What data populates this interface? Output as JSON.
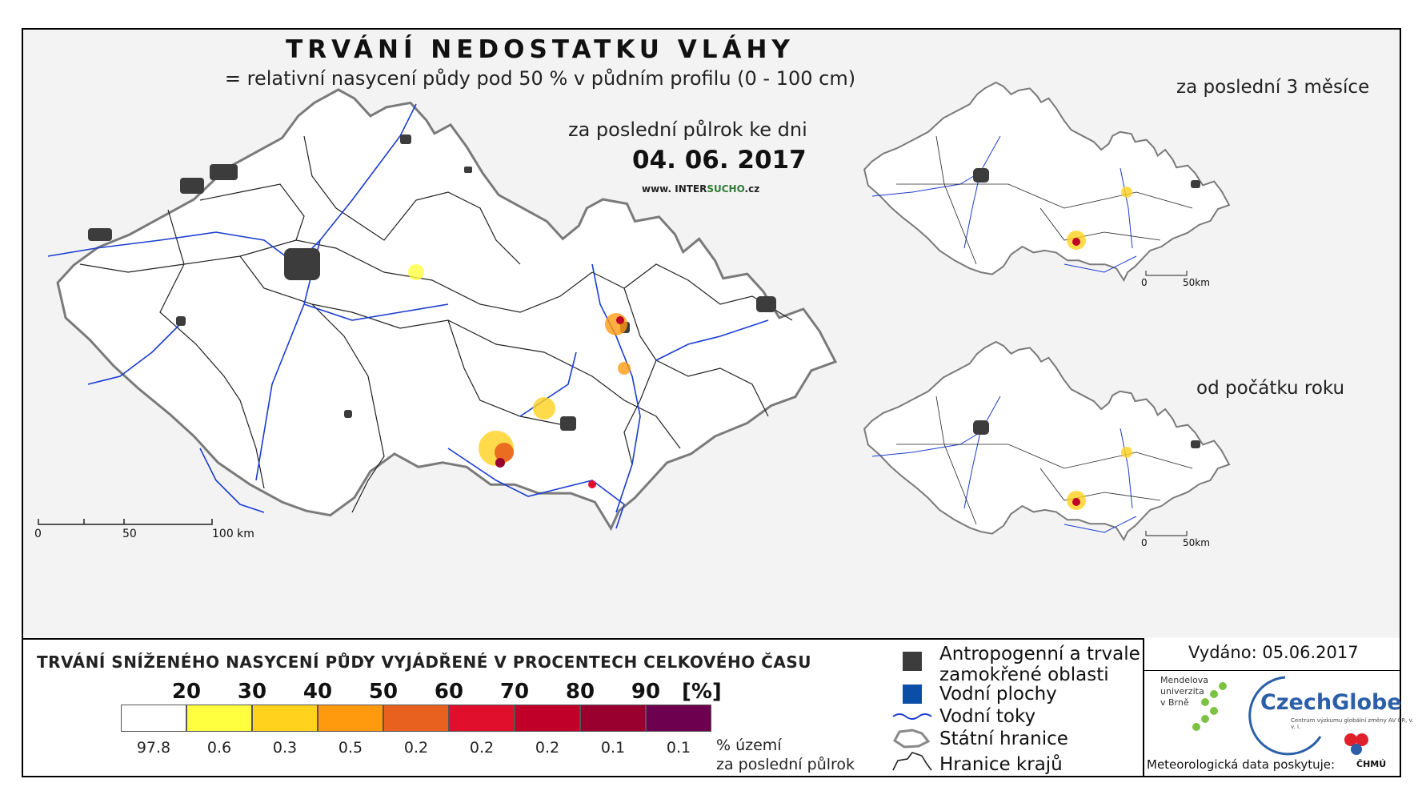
{
  "title": "TRVÁNÍ NEDOSTATKU VLÁHY",
  "subtitle": "= relativní nasycení půdy pod 50 % v půdním profilu (0 - 100 cm)",
  "period_label": "za poslední půlrok ke dni",
  "date": "04. 06. 2017",
  "url": {
    "prefix": "www. INTER",
    "brand": "SUCHO",
    "suffix": ".cz"
  },
  "inset_3m_label": "za poslední 3 měsíce",
  "inset_ytd_label": "od počátku roku",
  "scalebar_main": {
    "zero": "0",
    "mid": "50",
    "end": "100 km"
  },
  "scalebar_inset": {
    "zero": "0",
    "end": "50km"
  },
  "legend": {
    "title": "TRVÁNÍ SNÍŽENÉHO NASYCENÍ PŮDY VYJÁDŘENÉ V PROCENTECH CELKOVÉHO ČASU",
    "thresholds": [
      "20",
      "30",
      "40",
      "50",
      "60",
      "70",
      "80",
      "90"
    ],
    "unit": "[%]",
    "classes": [
      {
        "color": "#ffffff",
        "share": "97.8"
      },
      {
        "color": "#ffff40",
        "share": "0.6"
      },
      {
        "color": "#ffd21e",
        "share": "0.3"
      },
      {
        "color": "#ff9a0f",
        "share": "0.5"
      },
      {
        "color": "#e8611e",
        "share": "0.2"
      },
      {
        "color": "#e0102d",
        "share": "0.2"
      },
      {
        "color": "#c00028",
        "share": "0.2"
      },
      {
        "color": "#990030",
        "share": "0.1"
      },
      {
        "color": "#6e0050",
        "share": "0.1"
      }
    ],
    "share_label_1": "% území",
    "share_label_2": "za poslední půlrok"
  },
  "key": {
    "urban": "Antropogenní a trvale zamokřené oblasti",
    "urban_1": "Antropogenní a trvale",
    "urban_2": "zamokřené oblasti",
    "water": "Vodní plochy",
    "rivers": "Vodní toky",
    "state": "Státní hranice",
    "regions": "Hranice krajů",
    "colors": {
      "urban": "#3c3c3c",
      "water": "#0a4ea8",
      "rivers": "#1a3cd0",
      "border": "#666666"
    }
  },
  "issued": "Vydáno: 05.06.2017",
  "logos": {
    "mendel": [
      "Mendelova",
      "univerzita",
      "v Brně"
    ],
    "czechglobe": "CzechGlobe",
    "czechglobe_sub": "Centrum výzkumu globální změny AV ČR, v. v. i.",
    "meteo": "Meteorologická data poskytuje:",
    "chmu": "ČHMÚ"
  }
}
